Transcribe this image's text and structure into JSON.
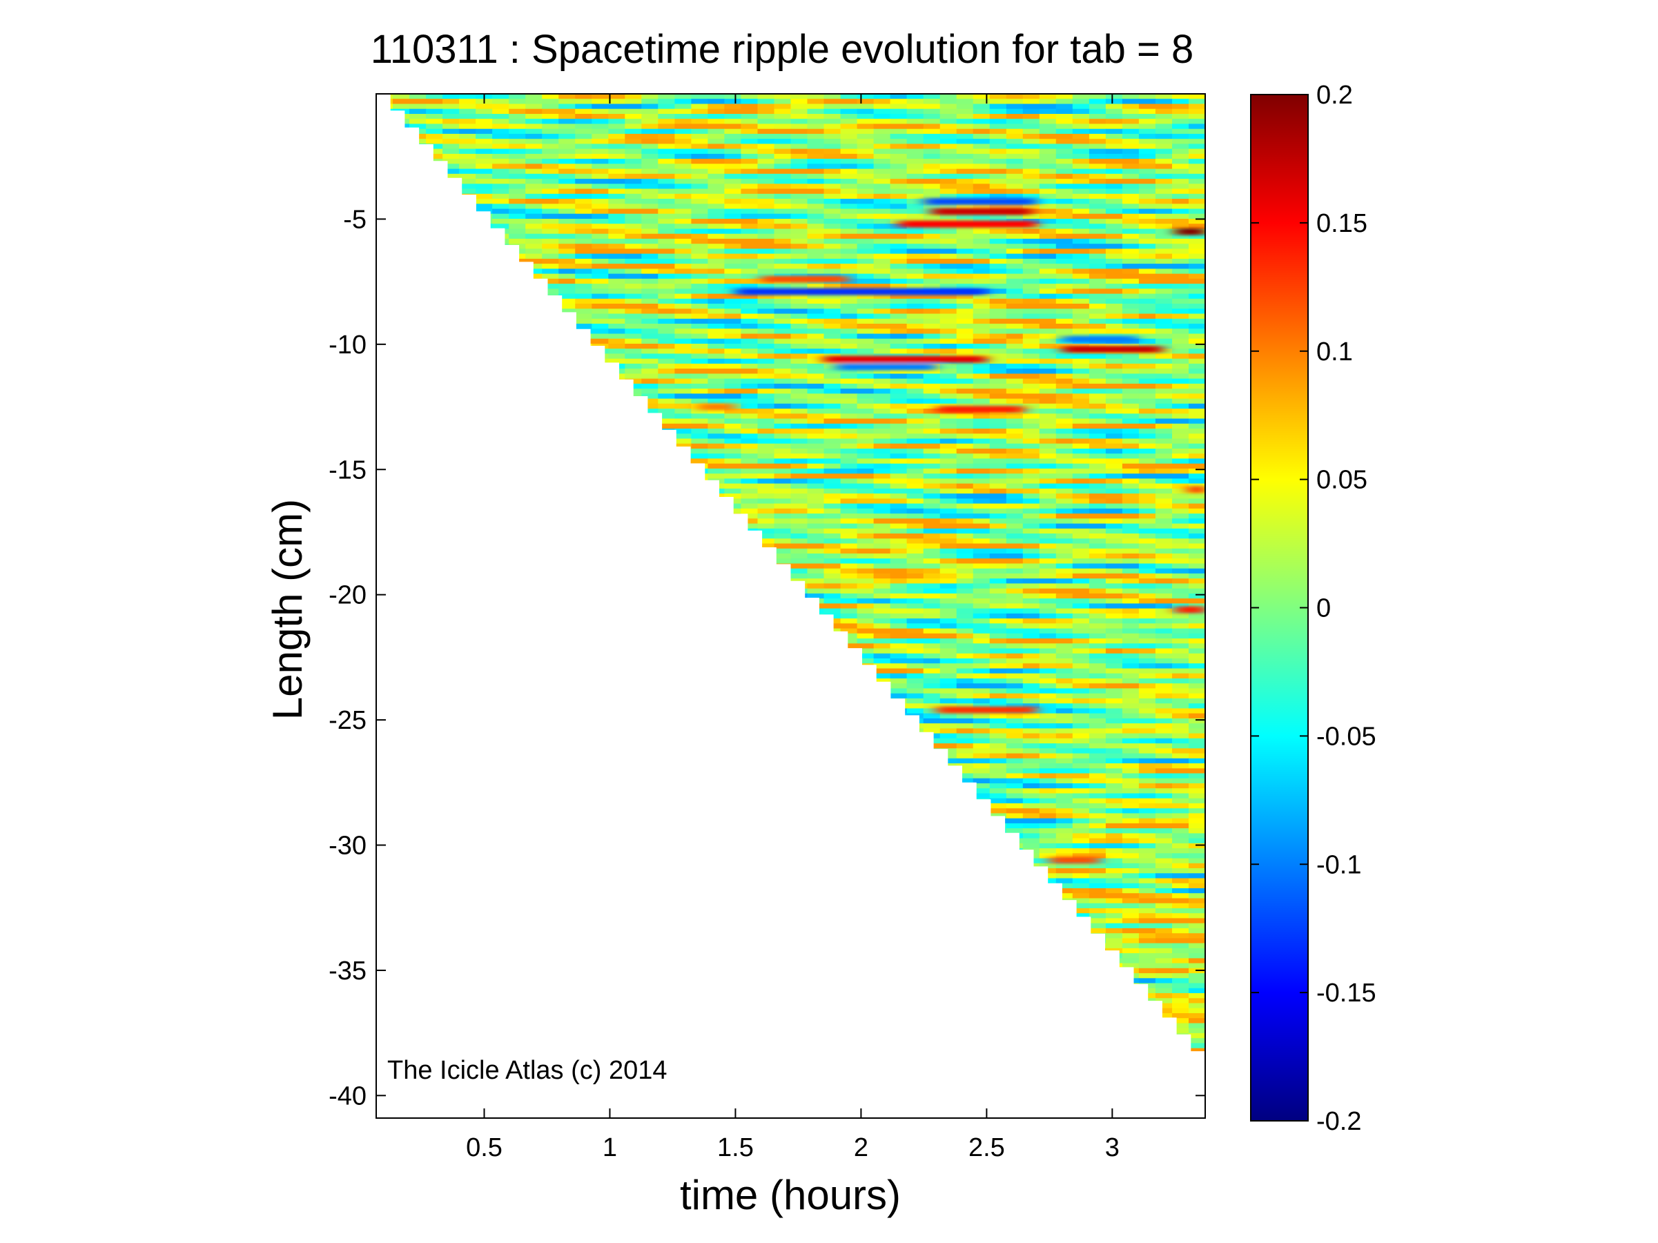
{
  "chart_data": {
    "type": "heatmap",
    "title": "110311 : Spacetime ripple evolution for tab = 8",
    "xlabel": "time (hours)",
    "ylabel": "Length (cm)",
    "xlim": [
      0.07,
      3.37
    ],
    "ylim": [
      -40.9,
      0.0
    ],
    "x_ticks": [
      0.5,
      1,
      1.5,
      2,
      2.5,
      3
    ],
    "x_tick_labels": [
      "0.5",
      "1",
      "1.5",
      "2",
      "2.5",
      "3"
    ],
    "y_ticks": [
      -5,
      -10,
      -15,
      -20,
      -25,
      -30,
      -35,
      -40
    ],
    "y_tick_labels": [
      "-5",
      "-10",
      "-15",
      "-20",
      "-25",
      "-30",
      "-35",
      "-40"
    ],
    "grid": false,
    "colormap": "jet",
    "colorbar": {
      "range": [
        -0.2,
        0.2
      ],
      "ticks": [
        0.2,
        0.15,
        0.1,
        0.05,
        0,
        -0.05,
        -0.1,
        -0.15,
        -0.2
      ],
      "tick_labels": [
        "0.2",
        "0.15",
        "0.1",
        "0.05",
        "0",
        "-0.05",
        "-0.1",
        "-0.15",
        "-0.2"
      ],
      "placement": "right"
    },
    "data_boundary": {
      "description_free": true,
      "start": [
        0.07,
        0.0
      ],
      "end": [
        3.37,
        -38.9
      ]
    },
    "bands": [
      {
        "y": -4.7,
        "x0": 2.28,
        "x1": 2.68,
        "value": 0.17
      },
      {
        "y": -5.2,
        "x0": 2.15,
        "x1": 2.7,
        "value": 0.15
      },
      {
        "y": -4.3,
        "x0": 2.25,
        "x1": 2.7,
        "value": -0.12
      },
      {
        "y": -5.5,
        "x0": 3.25,
        "x1": 3.37,
        "value": 0.2
      },
      {
        "y": -7.4,
        "x0": 1.6,
        "x1": 1.95,
        "value": 0.12
      },
      {
        "y": -7.9,
        "x0": 1.5,
        "x1": 2.5,
        "value": -0.13
      },
      {
        "y": -10.6,
        "x0": 1.85,
        "x1": 2.5,
        "value": 0.16
      },
      {
        "y": -10.9,
        "x0": 1.9,
        "x1": 2.3,
        "value": -0.1
      },
      {
        "y": -10.2,
        "x0": 2.8,
        "x1": 3.2,
        "value": 0.17
      },
      {
        "y": -9.8,
        "x0": 2.8,
        "x1": 3.1,
        "value": -0.1
      },
      {
        "y": -12.6,
        "x0": 2.3,
        "x1": 2.65,
        "value": 0.14
      },
      {
        "y": -12.5,
        "x0": 1.35,
        "x1": 1.5,
        "value": 0.1
      },
      {
        "y": -24.6,
        "x0": 2.3,
        "x1": 2.7,
        "value": 0.13
      },
      {
        "y": -30.6,
        "x0": 2.75,
        "x1": 2.95,
        "value": 0.12
      },
      {
        "y": -20.6,
        "x0": 3.25,
        "x1": 3.37,
        "value": 0.14
      },
      {
        "y": -15.8,
        "x0": 3.3,
        "x1": 3.37,
        "value": 0.13
      }
    ],
    "annotation": "The Icicle Atlas (c) 2014"
  }
}
